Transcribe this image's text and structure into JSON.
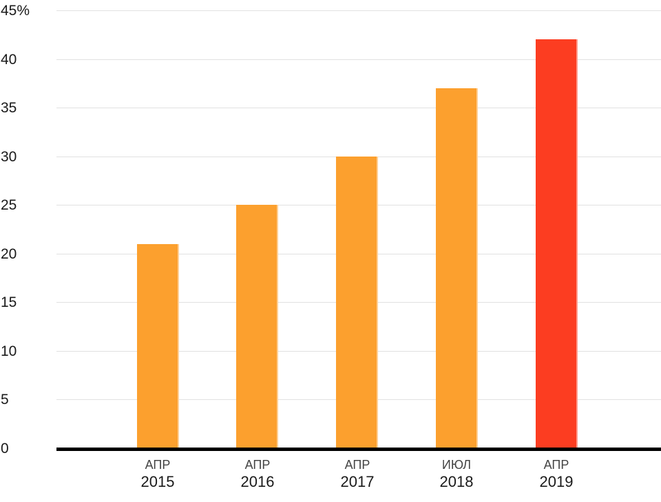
{
  "chart_data": {
    "type": "bar",
    "title": "",
    "xlabel": "",
    "ylabel": "",
    "categories": [
      "АПР 2015",
      "АПР 2016",
      "АПР 2017",
      "ИЮЛ 2018",
      "АПР 2019"
    ],
    "category_lines": [
      {
        "month": "АПР",
        "year": "2015"
      },
      {
        "month": "АПР",
        "year": "2016"
      },
      {
        "month": "АПР",
        "year": "2017"
      },
      {
        "month": "ИЮЛ",
        "year": "2018"
      },
      {
        "month": "АПР",
        "year": "2019"
      }
    ],
    "values": [
      21,
      25,
      30,
      37,
      42
    ],
    "unit": "%",
    "ylim": [
      0,
      45
    ],
    "ytick_step": 5,
    "ytick_labels": [
      "0",
      "5",
      "10",
      "15",
      "20",
      "25",
      "30",
      "35",
      "40",
      "45%"
    ],
    "grid": true,
    "legend": "none",
    "bar_colors": [
      "#FCA02E",
      "#FCA02E",
      "#FCA02E",
      "#FCA02E",
      "#FC3D21"
    ]
  },
  "colors": {
    "orange_bar": "#FCA02E",
    "red_bar": "#FC3D21",
    "gridline": "#e1e1e1",
    "axis_line": "#000000",
    "tick_text": "#1a1a1a",
    "month_text": "#444444",
    "background": "#ffffff"
  }
}
